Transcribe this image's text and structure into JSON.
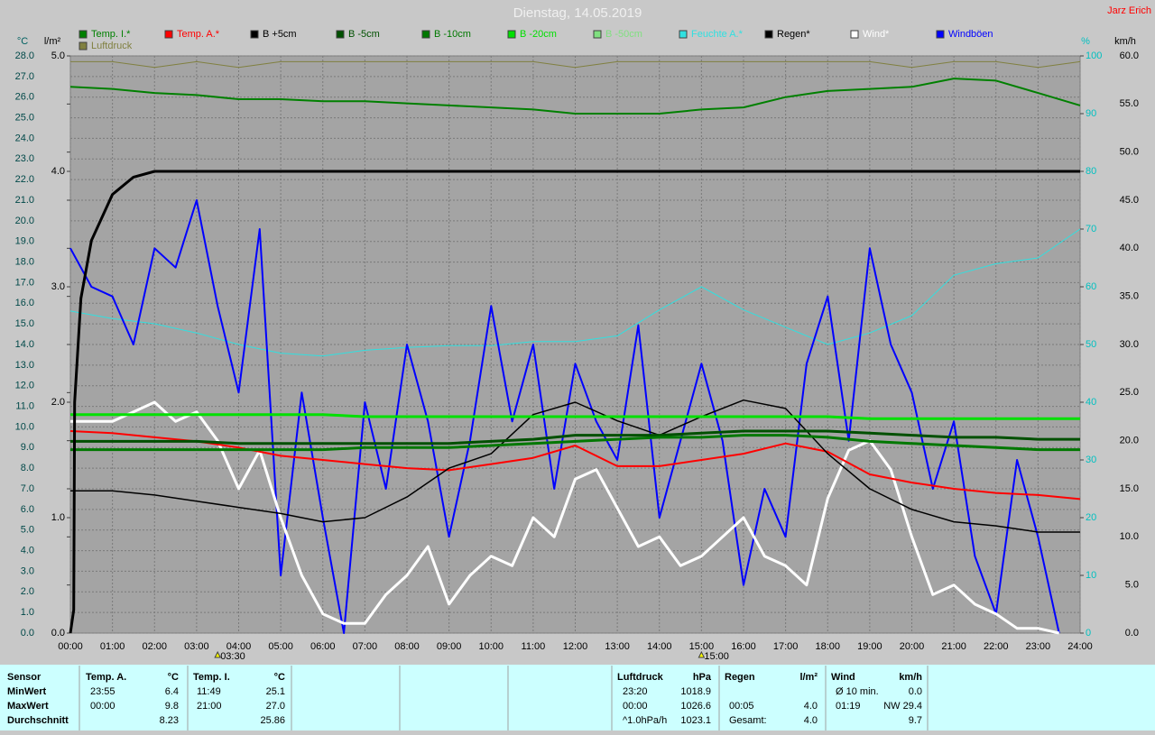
{
  "chart_data": {
    "type": "line",
    "title": "Dienstag, 14.05.2019",
    "author": "Jarz Erich",
    "y_label": "°C",
    "y2_label": "l/m²",
    "y3_label": "%",
    "y4_label": "km/h",
    "xlim": [
      0,
      24
    ],
    "xticks": [
      {
        "value": 0,
        "label": "00:00"
      },
      {
        "value": 1,
        "label": "01:00"
      },
      {
        "value": 2,
        "label": "02:00"
      },
      {
        "value": 3,
        "label": "03:00"
      },
      {
        "value": 4,
        "label": "04:00"
      },
      {
        "value": 5,
        "label": "05:00"
      },
      {
        "value": 6,
        "label": "06:00"
      },
      {
        "value": 7,
        "label": "07:00"
      },
      {
        "value": 8,
        "label": "08:00"
      },
      {
        "value": 9,
        "label": "09:00"
      },
      {
        "value": 10,
        "label": "10:00"
      },
      {
        "value": 11,
        "label": "11:00"
      },
      {
        "value": 12,
        "label": "12:00"
      },
      {
        "value": 13,
        "label": "13:00"
      },
      {
        "value": 14,
        "label": "14:00"
      },
      {
        "value": 15,
        "label": "15:00"
      },
      {
        "value": 16,
        "label": "16:00"
      },
      {
        "value": 17,
        "label": "17:00"
      },
      {
        "value": 18,
        "label": "18:00"
      },
      {
        "value": 19,
        "label": "19:00"
      },
      {
        "value": 20,
        "label": "20:00"
      },
      {
        "value": 21,
        "label": "21:00"
      },
      {
        "value": 22,
        "label": "22:00"
      },
      {
        "value": 23,
        "label": "23:00"
      },
      {
        "value": 24,
        "label": "24:00"
      }
    ],
    "ylim": [
      0,
      28
    ],
    "yticks": [
      {
        "value": 0,
        "label": "0.0"
      },
      {
        "value": 1,
        "label": "1.0"
      },
      {
        "value": 2,
        "label": "2.0"
      },
      {
        "value": 3,
        "label": "3.0"
      },
      {
        "value": 4,
        "label": "4.0"
      },
      {
        "value": 5,
        "label": "5.0"
      },
      {
        "value": 6,
        "label": "6.0"
      },
      {
        "value": 7,
        "label": "7.0"
      },
      {
        "value": 8,
        "label": "8.0"
      },
      {
        "value": 9,
        "label": "9.0"
      },
      {
        "value": 10,
        "label": "10.0"
      },
      {
        "value": 11,
        "label": "11.0"
      },
      {
        "value": 12,
        "label": "12.0"
      },
      {
        "value": 13,
        "label": "13.0"
      },
      {
        "value": 14,
        "label": "14.0"
      },
      {
        "value": 15,
        "label": "15.0"
      },
      {
        "value": 16,
        "label": "16.0"
      },
      {
        "value": 17,
        "label": "17.0"
      },
      {
        "value": 18,
        "label": "18.0"
      },
      {
        "value": 19,
        "label": "19.0"
      },
      {
        "value": 20,
        "label": "20.0"
      },
      {
        "value": 21,
        "label": "21.0"
      },
      {
        "value": 22,
        "label": "22.0"
      },
      {
        "value": 23,
        "label": "23.0"
      },
      {
        "value": 24,
        "label": "24.0"
      },
      {
        "value": 25,
        "label": "25.0"
      },
      {
        "value": 26,
        "label": "26.0"
      },
      {
        "value": 27,
        "label": "27.0"
      },
      {
        "value": 28,
        "label": "28.0"
      }
    ],
    "y2lim": [
      0,
      5
    ],
    "y2ticks": [
      {
        "value": 0,
        "label": "0.0"
      },
      {
        "value": 1,
        "label": "1.0"
      },
      {
        "value": 2,
        "label": "2.0"
      },
      {
        "value": 3,
        "label": "3.0"
      },
      {
        "value": 4,
        "label": "4.0"
      },
      {
        "value": 5,
        "label": "5.0"
      }
    ],
    "y3lim": [
      0,
      100
    ],
    "y3ticks": [
      0,
      10,
      20,
      30,
      40,
      50,
      60,
      70,
      80,
      90,
      100
    ],
    "y4lim": [
      0,
      60
    ],
    "y4ticks": [
      {
        "value": 0,
        "label": "0.0"
      },
      {
        "value": 5,
        "label": "5.0"
      },
      {
        "value": 10,
        "label": "10.0"
      },
      {
        "value": 15,
        "label": "15.0"
      },
      {
        "value": 20,
        "label": "20.0"
      },
      {
        "value": 25,
        "label": "25.0"
      },
      {
        "value": 30,
        "label": "30.0"
      },
      {
        "value": 35,
        "label": "35.0"
      },
      {
        "value": 40,
        "label": "40.0"
      },
      {
        "value": 45,
        "label": "45.0"
      },
      {
        "value": 50,
        "label": "50.0"
      },
      {
        "value": 55,
        "label": "55.0"
      },
      {
        "value": 60,
        "label": "60.0"
      }
    ],
    "grid": true,
    "x": [
      0,
      1,
      2,
      3,
      4,
      5,
      6,
      7,
      8,
      9,
      10,
      11,
      12,
      13,
      14,
      15,
      16,
      17,
      18,
      19,
      20,
      21,
      22,
      23,
      24
    ],
    "series": [
      {
        "name": "Temp. I.*",
        "color": "#008000",
        "axis": "y",
        "values": [
          26.5,
          26.4,
          26.2,
          26.1,
          25.9,
          25.9,
          25.8,
          25.8,
          25.7,
          25.6,
          25.5,
          25.4,
          25.2,
          25.2,
          25.2,
          25.4,
          25.5,
          26.0,
          26.3,
          26.4,
          26.5,
          26.9,
          26.8,
          26.2,
          25.6
        ]
      },
      {
        "name": "Temp. A.*",
        "color": "#ff0000",
        "axis": "y",
        "values": [
          9.8,
          9.7,
          9.5,
          9.3,
          9.0,
          8.6,
          8.4,
          8.2,
          8.0,
          7.9,
          8.2,
          8.5,
          9.1,
          8.1,
          8.1,
          8.4,
          8.7,
          9.2,
          8.8,
          7.7,
          7.3,
          7.0,
          6.8,
          6.7,
          6.5
        ]
      },
      {
        "name": "B +5cm",
        "color": "#000000",
        "axis": "y",
        "values": [
          6.9,
          6.9,
          6.7,
          6.4,
          6.1,
          5.8,
          5.4,
          5.6,
          6.6,
          8.0,
          8.7,
          10.6,
          11.2,
          10.3,
          9.6,
          10.5,
          11.3,
          10.9,
          8.7,
          7.0,
          6.0,
          5.4,
          5.2,
          4.9,
          4.9
        ]
      },
      {
        "name": "B -5cm",
        "color": "#005000",
        "axis": "y",
        "values": [
          9.3,
          9.3,
          9.3,
          9.3,
          9.2,
          9.2,
          9.2,
          9.2,
          9.2,
          9.2,
          9.3,
          9.4,
          9.6,
          9.6,
          9.6,
          9.7,
          9.8,
          9.8,
          9.8,
          9.7,
          9.6,
          9.5,
          9.5,
          9.4,
          9.4
        ]
      },
      {
        "name": "B -10cm",
        "color": "#007800",
        "axis": "y",
        "values": [
          8.9,
          8.9,
          8.9,
          8.9,
          8.9,
          8.9,
          8.9,
          9.0,
          9.0,
          9.0,
          9.1,
          9.2,
          9.3,
          9.4,
          9.5,
          9.5,
          9.6,
          9.6,
          9.5,
          9.3,
          9.2,
          9.1,
          9.0,
          8.9,
          8.9
        ]
      },
      {
        "name": "B -20cm",
        "color": "#00e000",
        "axis": "y",
        "values": [
          10.6,
          10.6,
          10.6,
          10.6,
          10.6,
          10.6,
          10.6,
          10.5,
          10.5,
          10.5,
          10.5,
          10.5,
          10.5,
          10.5,
          10.5,
          10.5,
          10.5,
          10.5,
          10.5,
          10.4,
          10.4,
          10.4,
          10.4,
          10.4,
          10.4
        ]
      },
      {
        "name": "B -50cm",
        "color": "#80e080",
        "axis": "y",
        "values": [
          null,
          null,
          null,
          null,
          null,
          null,
          null,
          null,
          null,
          null,
          null,
          null,
          null,
          null,
          null,
          null,
          null,
          null,
          null,
          null,
          null,
          null,
          null,
          null,
          null
        ]
      },
      {
        "name": "Feuchte A.*",
        "color": "#30e0e0",
        "axis": "y3",
        "values": [
          55.8,
          54.5,
          53.6,
          52,
          50,
          48.5,
          48,
          49,
          49.5,
          49.8,
          49.8,
          50.5,
          50.5,
          51.5,
          56,
          60,
          56,
          53,
          50,
          52,
          55,
          62,
          64,
          65,
          70
        ]
      },
      {
        "name": "Regen*",
        "color": "#000000",
        "axis": "y2",
        "x": [
          0,
          0.08,
          0.1,
          0.25,
          0.5,
          1,
          1.5,
          2,
          24
        ],
        "values": [
          0,
          0.2,
          2.0,
          2.9,
          3.4,
          3.8,
          3.95,
          4.0,
          4.0
        ]
      },
      {
        "name": "Wind*",
        "color": "#ffffff",
        "axis": "y4",
        "x": [
          0,
          0.5,
          1,
          1.5,
          2,
          2.5,
          3,
          3.5,
          4,
          4.5,
          5,
          5.5,
          6,
          6.5,
          7,
          7.5,
          8,
          8.5,
          9,
          9.5,
          10,
          10.5,
          11,
          11.5,
          12,
          12.5,
          13,
          13.5,
          14,
          14.5,
          15,
          15.5,
          16,
          16.5,
          17,
          17.5,
          18,
          18.5,
          19,
          19.5,
          20,
          20.5,
          21,
          21.5,
          22,
          22.5,
          23,
          23.5,
          24
        ],
        "values": [
          22,
          22,
          22,
          23,
          24,
          22,
          23,
          20,
          15,
          19,
          12,
          6,
          2,
          1,
          1,
          4,
          6,
          9,
          3,
          6,
          8,
          7,
          12,
          10,
          16,
          17,
          13,
          9,
          10,
          7,
          8,
          10,
          12,
          8,
          7,
          5,
          14,
          19,
          20,
          17,
          10,
          4,
          5,
          3,
          2,
          0.5,
          0.5,
          0,
          null
        ]
      },
      {
        "name": "Windböen",
        "color": "#0000ff",
        "axis": "y4",
        "x": [
          0,
          0.5,
          1,
          1.5,
          2,
          2.5,
          3,
          3.5,
          4,
          4.5,
          5,
          5.5,
          6,
          6.5,
          7,
          7.5,
          8,
          8.5,
          9,
          9.5,
          10,
          10.5,
          11,
          11.5,
          12,
          12.5,
          13,
          13.5,
          14,
          14.5,
          15,
          15.5,
          16,
          16.5,
          17,
          17.5,
          18,
          18.5,
          19,
          19.5,
          20,
          20.5,
          21,
          21.5,
          22,
          22.5,
          23,
          23.5,
          24
        ],
        "values": [
          40,
          36,
          35,
          30,
          40,
          38,
          45,
          34,
          25,
          42,
          6,
          25,
          12,
          0,
          24,
          15,
          30,
          22,
          10,
          20,
          34,
          22,
          30,
          15,
          28,
          22,
          18,
          32,
          12,
          20,
          28,
          20,
          5,
          15,
          10,
          28,
          35,
          20,
          40,
          30,
          25,
          15,
          22,
          8,
          2,
          18,
          10,
          0,
          null
        ]
      },
      {
        "name": "Luftdruck",
        "color": "#808040",
        "axis": "y3",
        "values": [
          99,
          99,
          98,
          99,
          98,
          99,
          99,
          99,
          99,
          99,
          99,
          99,
          98,
          99,
          99,
          99,
          99,
          99,
          99,
          99,
          98,
          99,
          99,
          98,
          99
        ]
      }
    ],
    "annotations": [
      {
        "x": 3.5,
        "label": "03:30"
      },
      {
        "x": 15,
        "label": "15:00"
      }
    ]
  },
  "stats": {
    "sensor": "Sensor",
    "row_labels": [
      "MinWert",
      "MaxWert",
      "Durchschnitt"
    ],
    "columns": [
      {
        "label": "Temp. A.",
        "unit": "°C",
        "rows": [
          {
            "time": "23:55",
            "value": "6.4"
          },
          {
            "time": "00:00",
            "value": "9.8"
          },
          {
            "value": "8.23"
          }
        ]
      },
      {
        "label": "Temp. I.",
        "unit": "°C",
        "rows": [
          {
            "time": "11:49",
            "value": "25.1"
          },
          {
            "time": "21:00",
            "value": "27.0"
          },
          {
            "value": "25.86"
          }
        ]
      },
      {
        "label": "Luftdruck",
        "unit": "hPa",
        "rows": [
          {
            "time": "23:20",
            "value": "1018.9"
          },
          {
            "time": "00:00",
            "value": "1026.6"
          },
          {
            "time": "^1.0hPa/h",
            "value": "1023.1"
          }
        ]
      },
      {
        "label": "Regen",
        "unit": "l/m²",
        "rows": [
          null,
          {
            "time": "00:05",
            "value": "4.0"
          },
          {
            "time": "Gesamt:",
            "value": "4.0"
          }
        ]
      },
      {
        "label": "Wind",
        "unit": "km/h",
        "rows": [
          {
            "time": "Ø 10 min.",
            "value": "0.0"
          },
          {
            "time": "01:19",
            "value": "NW 29.4"
          },
          {
            "value": "9.7"
          }
        ]
      }
    ]
  }
}
